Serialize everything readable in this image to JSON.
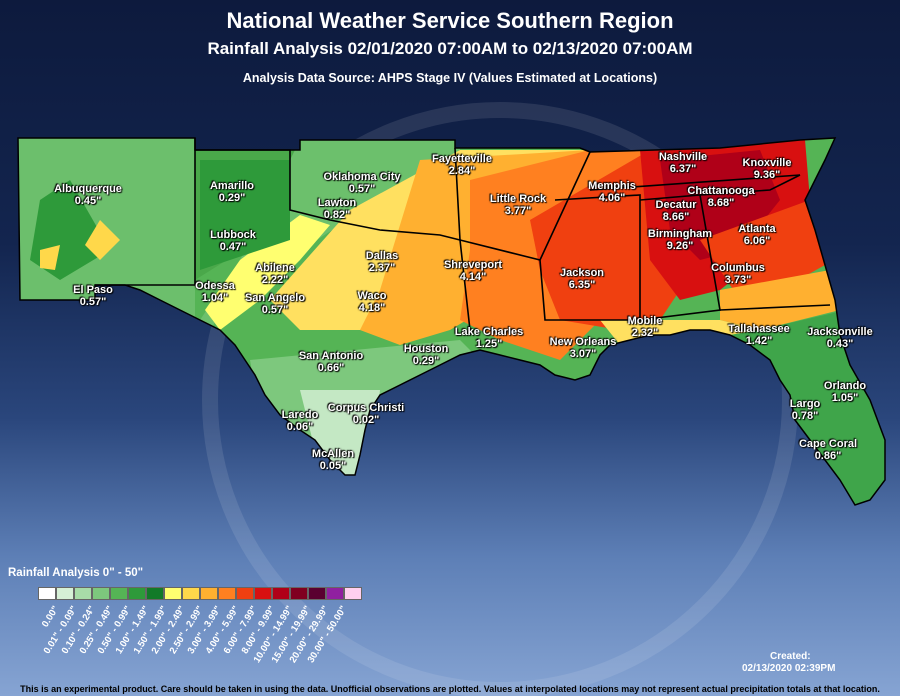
{
  "header": {
    "title": "National Weather Service Southern Region",
    "subtitle": "Rainfall Analysis 02/01/2020 07:00AM to 02/13/2020 07:00AM",
    "source": "Analysis Data Source: AHPS Stage IV (Values Estimated at Locations)"
  },
  "cities": [
    {
      "name": "Albuquerque",
      "value": "0.45\""
    },
    {
      "name": "El Paso",
      "value": "0.57\""
    },
    {
      "name": "Amarillo",
      "value": "0.29\""
    },
    {
      "name": "Lubbock",
      "value": "0.47\""
    },
    {
      "name": "Odessa",
      "value": "1.04\""
    },
    {
      "name": "Abilene",
      "value": "2.22\""
    },
    {
      "name": "San Angelo",
      "value": "0.57\""
    },
    {
      "name": "Oklahoma City",
      "value": "0.57\""
    },
    {
      "name": "Lawton",
      "value": "0.82\""
    },
    {
      "name": "Fayetteville",
      "value": "2.84\""
    },
    {
      "name": "Little Rock",
      "value": "3.77\""
    },
    {
      "name": "Dallas",
      "value": "2.37\""
    },
    {
      "name": "Waco",
      "value": "4.18\""
    },
    {
      "name": "Shreveport",
      "value": "4.14\""
    },
    {
      "name": "San Antonio",
      "value": "0.66\""
    },
    {
      "name": "Houston",
      "value": "0.29\""
    },
    {
      "name": "Laredo",
      "value": "0.06\""
    },
    {
      "name": "Corpus Christi",
      "value": "0.02\""
    },
    {
      "name": "McAllen",
      "value": "0.05\""
    },
    {
      "name": "Lake Charles",
      "value": "1.25\""
    },
    {
      "name": "New Orleans",
      "value": "3.07\""
    },
    {
      "name": "Memphis",
      "value": "4.06\""
    },
    {
      "name": "Jackson",
      "value": "6.35\""
    },
    {
      "name": "Mobile",
      "value": "2.32\""
    },
    {
      "name": "Nashville",
      "value": "6.37\""
    },
    {
      "name": "Knoxville",
      "value": "9.36\""
    },
    {
      "name": "Chattanooga",
      "value": "8.68\""
    },
    {
      "name": "Decatur",
      "value": "8.66\""
    },
    {
      "name": "Birmingham",
      "value": "9.26\""
    },
    {
      "name": "Atlanta",
      "value": "6.06\""
    },
    {
      "name": "Columbus",
      "value": "3.73\""
    },
    {
      "name": "Tallahassee",
      "value": "1.42\""
    },
    {
      "name": "Jacksonville",
      "value": "0.43\""
    },
    {
      "name": "Orlando",
      "value": "1.05\""
    },
    {
      "name": "Largo",
      "value": "0.78\""
    },
    {
      "name": "Cape Coral",
      "value": "0.86\""
    }
  ],
  "legend": {
    "title": "Rainfall Analysis 0\" - 50\"",
    "bins": [
      {
        "label": "0.00\"",
        "color": "#ffffff"
      },
      {
        "label": "0.01\" - 0.09\"",
        "color": "#d6f0d6"
      },
      {
        "label": "0.10\" - 0.24\"",
        "color": "#a8dca8"
      },
      {
        "label": "0.25\" - 0.49\"",
        "color": "#7dc87d"
      },
      {
        "label": "0.50\" - 0.99\"",
        "color": "#55b455"
      },
      {
        "label": "1.00\" - 1.49\"",
        "color": "#2e9a3a"
      },
      {
        "label": "1.50\" - 1.99\"",
        "color": "#127a28"
      },
      {
        "label": "2.00\" - 2.49\"",
        "color": "#ffff70"
      },
      {
        "label": "2.50\" - 2.99\"",
        "color": "#ffd84a"
      },
      {
        "label": "3.00\" - 3.99\"",
        "color": "#ffb030"
      },
      {
        "label": "4.00\" - 5.99\"",
        "color": "#ff8020"
      },
      {
        "label": "6.00\" - 7.99\"",
        "color": "#f04010"
      },
      {
        "label": "8.00\" - 9.99\"",
        "color": "#d81010"
      },
      {
        "label": "10.00\" - 14.99\"",
        "color": "#b00018"
      },
      {
        "label": "15.00\" - 19.99\"",
        "color": "#800020"
      },
      {
        "label": "20.00\" - 29.99\"",
        "color": "#5a0030"
      },
      {
        "label": "30.00\" - 50.00\"",
        "color": "#9020a0"
      },
      {
        "label": "",
        "color": "#ffd0f0"
      }
    ]
  },
  "footer": {
    "created_label": "Created:",
    "created_date": "02/13/2020 02:39PM",
    "disclaimer": "This is an experimental product. Care should be taken in using the data. Unofficial observations are plotted. Values at interpolated locations may not represent actual precipitation totals at that location."
  }
}
